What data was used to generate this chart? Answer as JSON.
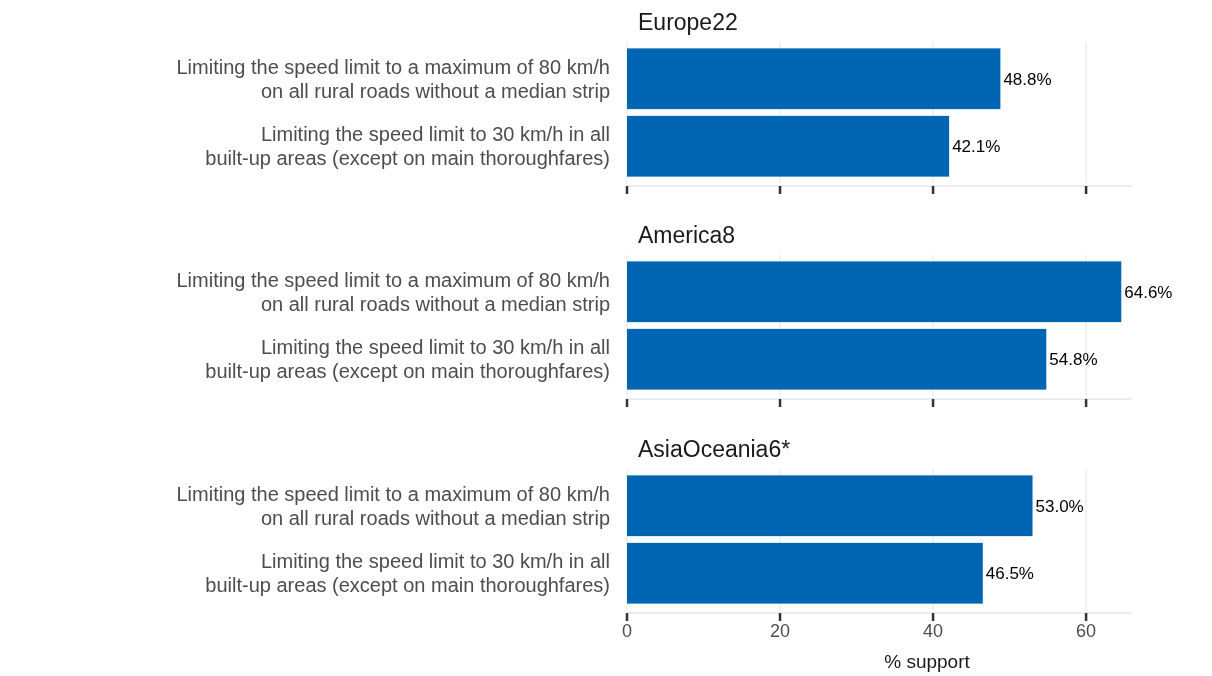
{
  "chart_data": [
    {
      "type": "bar",
      "orientation": "horizontal",
      "title": "Europe22",
      "categories": [
        "Limiting the speed limit to a maximum of 80 km/h\non all rural roads without a median strip",
        "Limiting the speed limit to 30 km/h in all\nbuilt-up areas (except on main thoroughfares)"
      ],
      "values": [
        48.8,
        42.1
      ],
      "value_labels": [
        "48.8%",
        "42.1%"
      ],
      "color": "#0066b3",
      "xlim": [
        0,
        66
      ],
      "xticks": [
        0,
        20,
        40,
        60
      ],
      "grid": "x",
      "tick_labels": "y"
    },
    {
      "type": "bar",
      "orientation": "horizontal",
      "title": "America8",
      "categories": [
        "Limiting the speed limit to a maximum of 80 km/h\non all rural roads without a median strip",
        "Limiting the speed limit to 30 km/h in all\nbuilt-up areas (except on main thoroughfares)"
      ],
      "values": [
        64.6,
        54.8
      ],
      "value_labels": [
        "64.6%",
        "54.8%"
      ],
      "color": "#0066b3",
      "xlim": [
        0,
        66
      ],
      "xticks": [
        0,
        20,
        40,
        60
      ],
      "grid": "x",
      "tick_labels": "y"
    },
    {
      "type": "bar",
      "orientation": "horizontal",
      "title": "AsiaOceania6*",
      "xlabel": "% support",
      "categories": [
        "Limiting the speed limit to a maximum of 80 km/h\non all rural roads without a median strip",
        "Limiting the speed limit to 30 km/h in all\nbuilt-up areas (except on main thoroughfares)"
      ],
      "values": [
        53.0,
        46.5
      ],
      "value_labels": [
        "53.0%",
        "46.5%"
      ],
      "color": "#0066b3",
      "xlim": [
        0,
        66
      ],
      "xticks": [
        0,
        20,
        40,
        60
      ],
      "grid": "x"
    }
  ]
}
